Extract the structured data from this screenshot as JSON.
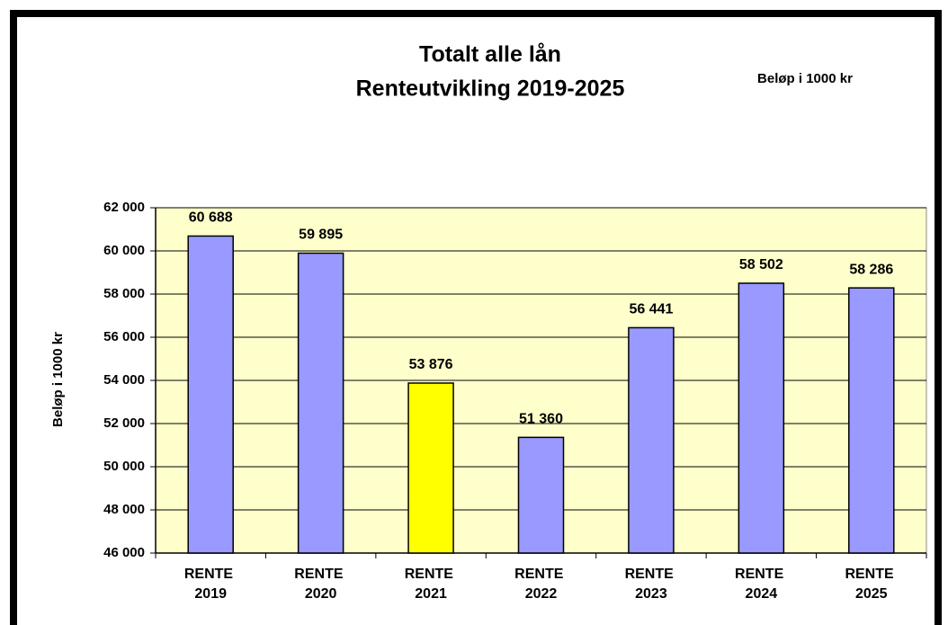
{
  "chart_data": {
    "type": "bar",
    "title": "Totalt alle lån",
    "subtitle": "Renteutvikling 2019-2025",
    "annotation": "Beløp i 1000 kr",
    "y_label": "Beløp i 1000 kr",
    "categories": [
      "RENTE 2019",
      "RENTE 2020",
      "RENTE 2021",
      "RENTE 2022",
      "RENTE 2023",
      "RENTE 2024",
      "RENTE 2025"
    ],
    "values": [
      60688,
      59895,
      53876,
      51360,
      56441,
      58502,
      58286
    ],
    "value_labels": [
      "60 688",
      "59 895",
      "53 876",
      "51 360",
      "56 441",
      "58 502",
      "58 286"
    ],
    "colors": [
      "#9999ff",
      "#9999ff",
      "#ffff00",
      "#9999ff",
      "#9999ff",
      "#9999ff",
      "#9999ff"
    ],
    "ylim": [
      46000,
      62000
    ],
    "yticks": [
      {
        "value": 46000,
        "label": "46 000"
      },
      {
        "value": 48000,
        "label": "48 000"
      },
      {
        "value": 50000,
        "label": "50 000"
      },
      {
        "value": 52000,
        "label": "52 000"
      },
      {
        "value": 54000,
        "label": "54 000"
      },
      {
        "value": 56000,
        "label": "56 000"
      },
      {
        "value": 58000,
        "label": "58 000"
      },
      {
        "value": 60000,
        "label": "60 000"
      },
      {
        "value": 62000,
        "label": "62 000"
      }
    ],
    "grid": true,
    "plot_background": "#ffffcc"
  }
}
